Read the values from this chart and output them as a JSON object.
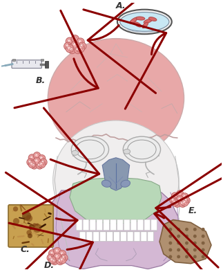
{
  "bg_color": "#ffffff",
  "arrow_color": "#8b0000",
  "label_A": "A.",
  "label_B": "B.",
  "label_C": "C.",
  "label_D": "D.",
  "label_E": "E.",
  "skull_cranium_color": "#e8a8a8",
  "skull_face_color": "#f0eeee",
  "skull_mandible_color": "#d4b8d4",
  "skull_maxilla_color": "#b8d8b8",
  "skull_nose_color": "#90a8c0",
  "petri_dish_bg": "#c8e8f4",
  "petri_outline": "#444444",
  "cell_color": "#f0a8a8",
  "cell_edge": "#c06868",
  "cell_highlight": "#f8d8d8",
  "scaffold_color": "#b09070",
  "scaffold_dot": "#806040",
  "tissue_bg": "#c8a050",
  "tissue_edge": "#907030",
  "skull_line_color": "#bbbbbb",
  "skull_edge_color": "#ccaaaa"
}
